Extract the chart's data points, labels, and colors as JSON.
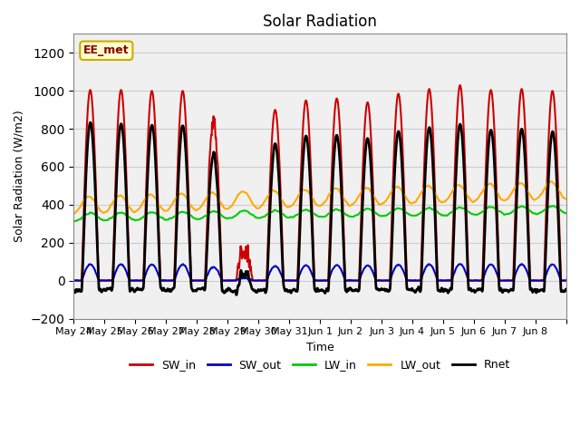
{
  "title": "Solar Radiation",
  "ylabel": "Solar Radiation (W/m2)",
  "xlabel": "Time",
  "annotation": "EE_met",
  "ylim": [
    -200,
    1300
  ],
  "yticks": [
    -200,
    0,
    200,
    400,
    600,
    800,
    1000,
    1200
  ],
  "n_days": 16,
  "pts_per_day": 144,
  "SW_in_peak": 1000,
  "SW_out_base": 80,
  "LW_in_base": 340,
  "LW_out_base": 420,
  "colors": {
    "SW_in": "#cc0000",
    "SW_out": "#0000cc",
    "LW_in": "#00cc00",
    "LW_out": "#ffaa00",
    "Rnet": "#000000"
  },
  "line_widths": {
    "SW_in": 1.5,
    "SW_out": 1.5,
    "LW_in": 1.5,
    "LW_out": 1.5,
    "Rnet": 2.0
  },
  "date_labels": [
    "May 24",
    "May 25",
    "May 26",
    "May 27",
    "May 28",
    "May 29",
    "May 30",
    "May 31",
    "Jun 1",
    "Jun 2",
    "Jun 3",
    "Jun 4",
    "Jun 5",
    "Jun 6",
    "Jun 7",
    "Jun 8"
  ],
  "grid_color": "#cccccc",
  "bg_color": "#e8e8e8",
  "plot_bg": "#f0f0f0"
}
